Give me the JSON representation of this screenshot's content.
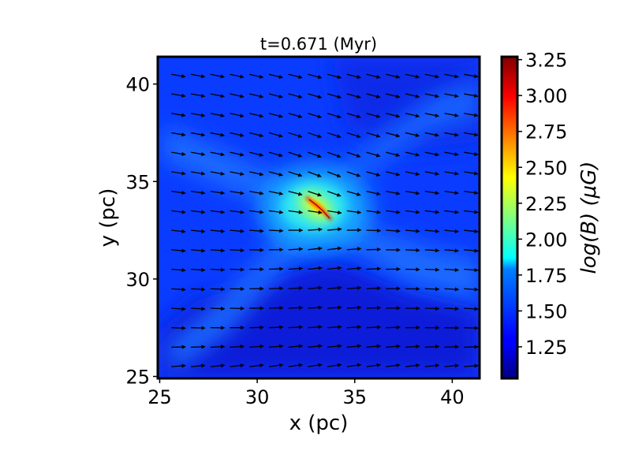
{
  "chart_data": {
    "type": "heatmap",
    "title": "t=0.671 (Myr)",
    "xlabel": "x (pc)",
    "ylabel": "y (pc)",
    "xlim": [
      24.9,
      41.4
    ],
    "ylim": [
      24.9,
      41.4
    ],
    "x_ticks": [
      25,
      30,
      35,
      40
    ],
    "y_ticks": [
      25,
      30,
      35,
      40
    ],
    "colorbar": {
      "label": "log(B) (μG)",
      "range": [
        1.03,
        3.27
      ],
      "ticks": [
        1.25,
        1.5,
        1.75,
        2.0,
        2.25,
        2.5,
        2.75,
        3.0,
        3.25
      ],
      "tick_labels": [
        "1.25",
        "1.50",
        "1.75",
        "2.00",
        "2.25",
        "2.50",
        "2.75",
        "3.00",
        "3.25"
      ],
      "colormap": "jet"
    },
    "field_summary": {
      "background_logB": 1.3,
      "peak_logB": 3.25,
      "peak_center": [
        33.3,
        33.4
      ],
      "filament_direction": "diagonal from upper-left to lower-right through center",
      "arrows": "magnetic field direction vectors, mostly pointing right"
    }
  }
}
